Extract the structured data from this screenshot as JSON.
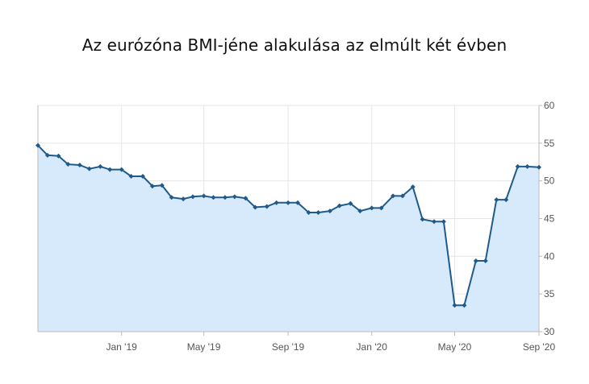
{
  "chart_data": {
    "type": "area",
    "title": "Az eurózóna BMI-jéne alakulása az elmúlt két évben",
    "xlabel": "",
    "ylabel": "",
    "ylim": [
      30,
      60
    ],
    "yticks": [
      "30",
      "35",
      "40",
      "45",
      "50",
      "55",
      "60"
    ],
    "xticks": [
      "Jan '19",
      "May '19",
      "Sep '19",
      "Jan '20",
      "May '20",
      "Sep '20"
    ],
    "grid": true,
    "legend": "none",
    "x": [
      "2018-09-01",
      "2018-09-15",
      "2018-10-01",
      "2018-10-15",
      "2018-11-01",
      "2018-11-15",
      "2018-12-01",
      "2018-12-15",
      "2019-01-01",
      "2019-01-15",
      "2019-02-01",
      "2019-02-15",
      "2019-03-01",
      "2019-03-15",
      "2019-04-01",
      "2019-04-15",
      "2019-05-01",
      "2019-05-15",
      "2019-06-01",
      "2019-06-15",
      "2019-07-01",
      "2019-07-15",
      "2019-08-01",
      "2019-08-15",
      "2019-09-01",
      "2019-09-15",
      "2019-10-01",
      "2019-10-15",
      "2019-11-01",
      "2019-11-15",
      "2019-12-01",
      "2019-12-15",
      "2020-01-01",
      "2020-01-15",
      "2020-02-01",
      "2020-02-15",
      "2020-03-01",
      "2020-03-15",
      "2020-04-01",
      "2020-04-15",
      "2020-05-01",
      "2020-05-15",
      "2020-06-01",
      "2020-06-15",
      "2020-07-01",
      "2020-07-15",
      "2020-08-01",
      "2020-08-15",
      "2020-09-01"
    ],
    "values": [
      54.7,
      53.4,
      53.3,
      52.2,
      52.1,
      51.6,
      51.9,
      51.5,
      51.5,
      50.6,
      50.6,
      49.3,
      49.4,
      47.8,
      47.6,
      47.9,
      48.0,
      47.8,
      47.8,
      47.9,
      47.7,
      46.5,
      46.6,
      47.1,
      47.1,
      47.1,
      45.8,
      45.8,
      46.0,
      46.7,
      47.0,
      46.0,
      46.4,
      46.4,
      48.0,
      48.0,
      49.2,
      44.9,
      44.6,
      44.6,
      33.5,
      33.5,
      39.4,
      39.4,
      47.5,
      47.5,
      51.9,
      51.9,
      51.8
    ],
    "colors": {
      "line": "#1f5a8a",
      "fill": "#d7eafc",
      "grid": "#e6e6e6",
      "axis": "#bbbbbb"
    }
  }
}
